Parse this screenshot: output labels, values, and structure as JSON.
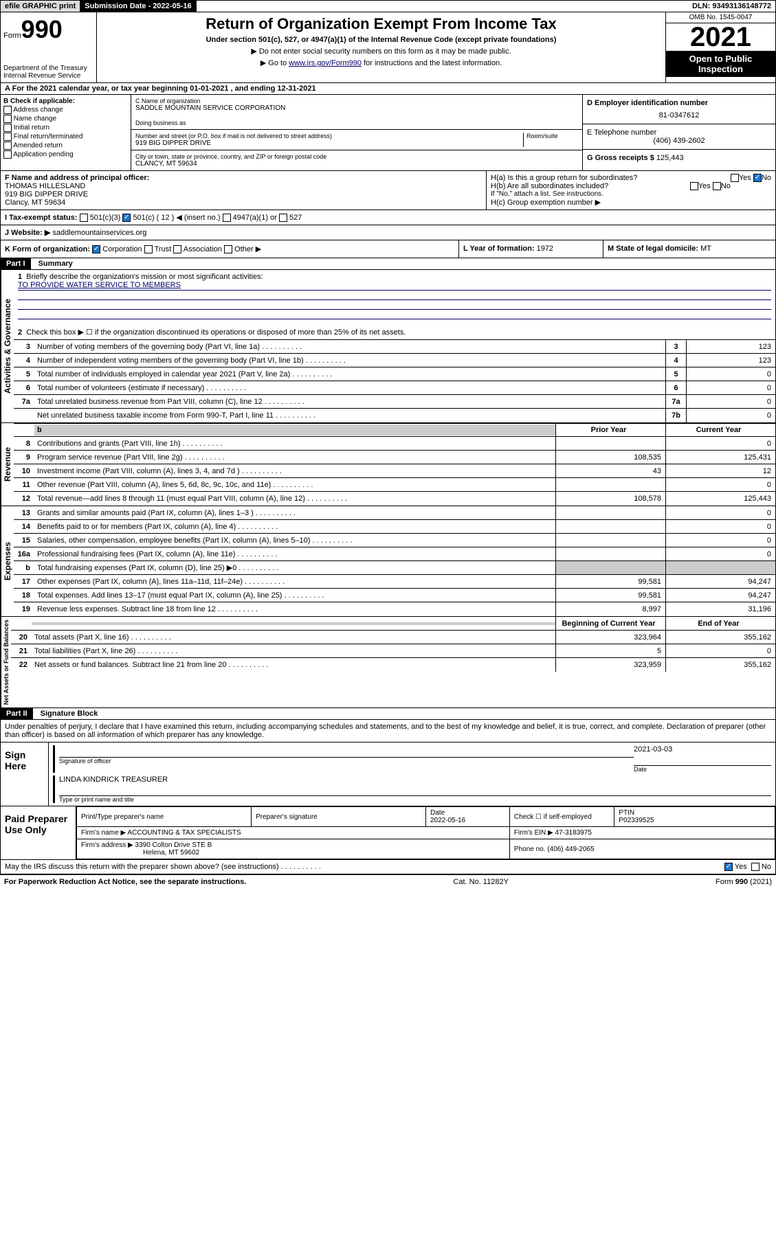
{
  "top_bar": {
    "efile": "efile GRAPHIC print",
    "sub_date_label": "Submission Date - 2022-05-16",
    "dln": "DLN: 93493136148772"
  },
  "header": {
    "form_no": "990",
    "form_word": "Form",
    "dept": "Department of the Treasury",
    "irs": "Internal Revenue Service",
    "title": "Return of Organization Exempt From Income Tax",
    "subtitle": "Under section 501(c), 527, or 4947(a)(1) of the Internal Revenue Code (except private foundations)",
    "line1": "▶ Do not enter social security numbers on this form as it may be made public.",
    "line2_pre": "▶ Go to ",
    "line2_link": "www.irs.gov/Form990",
    "line2_post": " for instructions and the latest information.",
    "omb": "OMB No. 1545-0047",
    "year": "2021",
    "open_public": "Open to Public Inspection"
  },
  "period": "For the 2021 calendar year, or tax year beginning 01-01-2021   , and ending 12-31-2021",
  "section_b": {
    "header": "B Check if applicable:",
    "items": [
      "Address change",
      "Name change",
      "Initial return",
      "Final return/terminated",
      "Amended return",
      "Application pending"
    ]
  },
  "section_c": {
    "name_label": "C Name of organization",
    "name": "SADDLE MOUNTAIN SERVICE CORPORATION",
    "dba_label": "Doing business as",
    "dba": "",
    "addr_label": "Number and street (or P.O. box if mail is not delivered to street address)",
    "room_label": "Room/suite",
    "addr": "919 BIG DIPPER DRIVE",
    "city_label": "City or town, state or province, country, and ZIP or foreign postal code",
    "city": "CLANCY, MT  59634"
  },
  "section_d": {
    "ein_label": "D Employer identification number",
    "ein": "81-0347612",
    "phone_label": "E Telephone number",
    "phone": "(406) 439-2602",
    "gross_label": "G Gross receipts $",
    "gross": "125,443"
  },
  "section_f": {
    "label": "F  Name and address of principal officer:",
    "name": "THOMAS HILLESLAND",
    "addr1": "919 BIG DIPPER DRIVE",
    "addr2": "Clancy, MT  59634"
  },
  "section_h": {
    "ha": "H(a)  Is this a group return for subordinates?",
    "hb": "H(b)  Are all subordinates included?",
    "hb_note": "If \"No,\" attach a list. See instructions.",
    "hc": "H(c)  Group exemption number ▶"
  },
  "section_i": {
    "label": "I   Tax-exempt status:",
    "opt1": "501(c)(3)",
    "opt2": "501(c) ( 12 ) ◀ (insert no.)",
    "opt3": "4947(a)(1) or",
    "opt4": "527"
  },
  "section_j": {
    "label": "J   Website: ▶",
    "value": "saddlemountainservices.org"
  },
  "section_k": {
    "label": "K Form of organization:",
    "opts": [
      "Corporation",
      "Trust",
      "Association",
      "Other ▶"
    ]
  },
  "section_l": {
    "label": "L Year of formation:",
    "value": "1972"
  },
  "section_m": {
    "label": "M State of legal domicile:",
    "value": "MT"
  },
  "part1": {
    "header": "Part I",
    "title": "Summary",
    "q1": "Briefly describe the organization's mission or most significant activities:",
    "mission": "TO PROVIDE WATER SERVICE TO MEMBERS",
    "q2": "Check this box ▶ ☐  if the organization discontinued its operations or disposed of more than 25% of its net assets.",
    "py_hdr": "Prior Year",
    "cy_hdr": "Current Year",
    "boy_hdr": "Beginning of Current Year",
    "eoy_hdr": "End of Year",
    "rows_gov": [
      {
        "n": "3",
        "t": "Number of voting members of the governing body (Part VI, line 1a)",
        "box": "3",
        "v": "123"
      },
      {
        "n": "4",
        "t": "Number of independent voting members of the governing body (Part VI, line 1b)",
        "box": "4",
        "v": "123"
      },
      {
        "n": "5",
        "t": "Total number of individuals employed in calendar year 2021 (Part V, line 2a)",
        "box": "5",
        "v": "0"
      },
      {
        "n": "6",
        "t": "Total number of volunteers (estimate if necessary)",
        "box": "6",
        "v": "0"
      },
      {
        "n": "7a",
        "t": "Total unrelated business revenue from Part VIII, column (C), line 12",
        "box": "7a",
        "v": "0"
      },
      {
        "n": "",
        "t": "Net unrelated business taxable income from Form 990-T, Part I, line 11",
        "box": "7b",
        "v": "0"
      }
    ],
    "rows_rev": [
      {
        "n": "8",
        "t": "Contributions and grants (Part VIII, line 1h)",
        "py": "",
        "cy": "0"
      },
      {
        "n": "9",
        "t": "Program service revenue (Part VIII, line 2g)",
        "py": "108,535",
        "cy": "125,431"
      },
      {
        "n": "10",
        "t": "Investment income (Part VIII, column (A), lines 3, 4, and 7d )",
        "py": "43",
        "cy": "12"
      },
      {
        "n": "11",
        "t": "Other revenue (Part VIII, column (A), lines 5, 6d, 8c, 9c, 10c, and 11e)",
        "py": "",
        "cy": "0"
      },
      {
        "n": "12",
        "t": "Total revenue—add lines 8 through 11 (must equal Part VIII, column (A), line 12)",
        "py": "108,578",
        "cy": "125,443"
      }
    ],
    "rows_exp": [
      {
        "n": "13",
        "t": "Grants and similar amounts paid (Part IX, column (A), lines 1–3 )",
        "py": "",
        "cy": "0"
      },
      {
        "n": "14",
        "t": "Benefits paid to or for members (Part IX, column (A), line 4)",
        "py": "",
        "cy": "0"
      },
      {
        "n": "15",
        "t": "Salaries, other compensation, employee benefits (Part IX, column (A), lines 5–10)",
        "py": "",
        "cy": "0"
      },
      {
        "n": "16a",
        "t": "Professional fundraising fees (Part IX, column (A), line 11e)",
        "py": "",
        "cy": "0"
      },
      {
        "n": "b",
        "t": "Total fundraising expenses (Part IX, column (D), line 25) ▶0",
        "py": "grey",
        "cy": "grey"
      },
      {
        "n": "17",
        "t": "Other expenses (Part IX, column (A), lines 11a–11d, 11f–24e)",
        "py": "99,581",
        "cy": "94,247"
      },
      {
        "n": "18",
        "t": "Total expenses. Add lines 13–17 (must equal Part IX, column (A), line 25)",
        "py": "99,581",
        "cy": "94,247"
      },
      {
        "n": "19",
        "t": "Revenue less expenses. Subtract line 18 from line 12",
        "py": "8,997",
        "cy": "31,196"
      }
    ],
    "rows_net": [
      {
        "n": "20",
        "t": "Total assets (Part X, line 16)",
        "py": "323,964",
        "cy": "355,162"
      },
      {
        "n": "21",
        "t": "Total liabilities (Part X, line 26)",
        "py": "5",
        "cy": "0"
      },
      {
        "n": "22",
        "t": "Net assets or fund balances. Subtract line 21 from line 20",
        "py": "323,959",
        "cy": "355,162"
      }
    ]
  },
  "vert_labels": {
    "gov": "Activities & Governance",
    "rev": "Revenue",
    "exp": "Expenses",
    "net": "Net Assets or Fund Balances"
  },
  "part2": {
    "header": "Part II",
    "title": "Signature Block",
    "declare": "Under penalties of perjury, I declare that I have examined this return, including accompanying schedules and statements, and to the best of my knowledge and belief, it is true, correct, and complete. Declaration of preparer (other than officer) is based on all information of which preparer has any knowledge."
  },
  "sign_here": {
    "label": "Sign Here",
    "sig_label": "Signature of officer",
    "date": "2021-03-03",
    "date_label": "Date",
    "name": "LINDA KINDRICK  TREASURER",
    "name_label": "Type or print name and title"
  },
  "paid_prep": {
    "label": "Paid Preparer Use Only",
    "hdr_name": "Print/Type preparer's name",
    "hdr_sig": "Preparer's signature",
    "hdr_date": "Date",
    "date": "2022-05-16",
    "check_label": "Check ☐ if self-employed",
    "ptin_label": "PTIN",
    "ptin": "P02339525",
    "firm_name_label": "Firm's name    ▶",
    "firm_name": "ACCOUNTING & TAX SPECIALISTS",
    "firm_ein_label": "Firm's EIN ▶",
    "firm_ein": "47-3183975",
    "firm_addr_label": "Firm's address ▶",
    "firm_addr1": "3390 Colton Drive STE B",
    "firm_addr2": "Helena, MT  59602",
    "phone_label": "Phone no.",
    "phone": "(406) 449-2065"
  },
  "footer": {
    "discuss": "May the IRS discuss this return with the preparer shown above? (see instructions)",
    "paperwork": "For Paperwork Reduction Act Notice, see the separate instructions.",
    "cat": "Cat. No. 11282Y",
    "form": "Form 990 (2021)"
  }
}
